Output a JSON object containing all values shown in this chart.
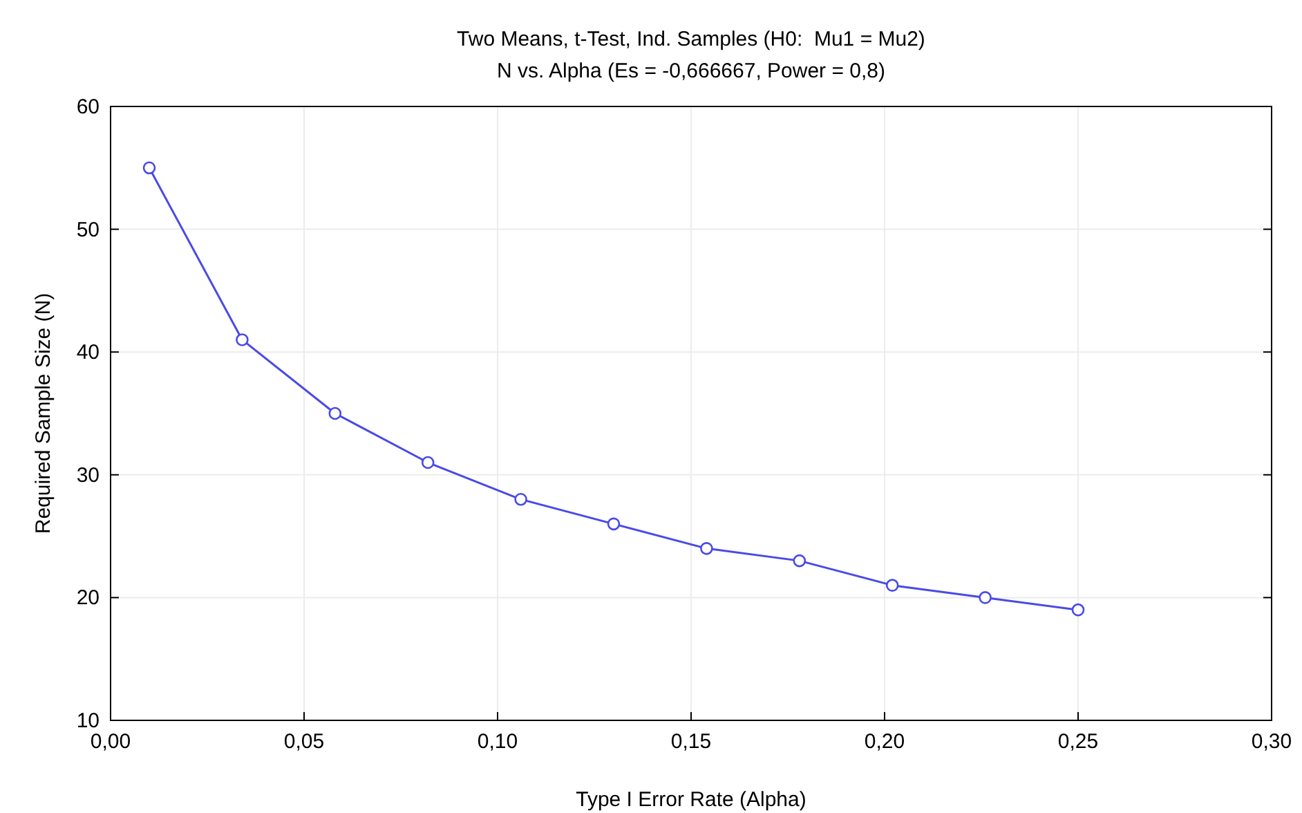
{
  "chart_data": {
    "type": "line",
    "title": "Two Means, t-Test, Ind. Samples (H0:  Mu1 = Mu2)",
    "subtitle": "N vs. Alpha (Es = -0,666667, Power = 0,8)",
    "xlabel": "Type I Error Rate (Alpha)",
    "ylabel": "Required Sample Size (N)",
    "x": [
      0.01,
      0.034,
      0.058,
      0.082,
      0.106,
      0.13,
      0.154,
      0.178,
      0.202,
      0.226,
      0.25
    ],
    "series": [
      {
        "color": "#4a4ae6",
        "values": [
          55,
          41,
          35,
          31,
          28,
          26,
          24,
          23,
          21,
          20,
          19
        ]
      }
    ],
    "xlim": [
      0,
      0.3
    ],
    "xticks": [
      {
        "value": 0,
        "label": "0,00"
      },
      {
        "value": 0.05,
        "label": "0,05"
      },
      {
        "value": 0.1,
        "label": "0,10"
      },
      {
        "value": 0.15,
        "label": "0,15"
      },
      {
        "value": 0.2,
        "label": "0,20"
      },
      {
        "value": 0.25,
        "label": "0,25"
      },
      {
        "value": 0.3,
        "label": "0,30"
      }
    ],
    "ylim": [
      10,
      60
    ],
    "yticks": [
      10,
      20,
      30,
      40,
      50,
      60
    ],
    "grid": true,
    "marker": "circle",
    "line_style": "solid"
  }
}
